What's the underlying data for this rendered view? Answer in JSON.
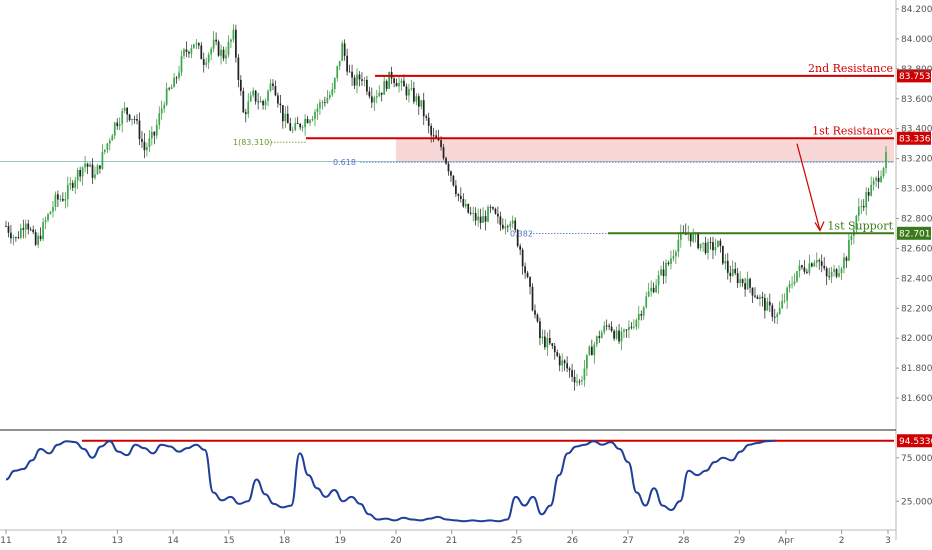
{
  "chart_data": {
    "type": "candlestick",
    "grid": false,
    "price_axis": {
      "ticks": [
        "84.200",
        "84.000",
        "83.800",
        "83.600",
        "83.400",
        "83.200",
        "83.000",
        "82.800",
        "82.600",
        "82.400",
        "82.200",
        "82.000",
        "81.800",
        "81.600"
      ],
      "range": [
        81.52,
        84.22
      ]
    },
    "date_axis": {
      "ticks": [
        "11",
        "12",
        "13",
        "14",
        "15",
        "18",
        "19",
        "20",
        "21",
        "25",
        "26",
        "27",
        "28",
        "29",
        "Apr",
        "2",
        "3"
      ]
    },
    "price_series": [
      [
        0,
        82.75
      ],
      [
        1,
        82.66
      ],
      [
        2,
        82.8
      ],
      [
        3,
        82.62
      ],
      [
        4,
        82.78
      ],
      [
        5,
        82.92
      ],
      [
        6,
        82.95
      ],
      [
        7,
        83.08
      ],
      [
        8,
        83.17
      ],
      [
        9,
        83.08
      ],
      [
        10,
        83.26
      ],
      [
        11,
        83.43
      ],
      [
        12,
        83.52
      ],
      [
        13,
        83.47
      ],
      [
        14,
        83.26
      ],
      [
        15,
        83.36
      ],
      [
        16,
        83.6
      ],
      [
        17,
        83.7
      ],
      [
        18,
        83.9
      ],
      [
        19,
        83.98
      ],
      [
        20,
        83.86
      ],
      [
        21,
        83.96
      ],
      [
        22,
        83.89
      ],
      [
        23,
        84.02
      ],
      [
        24,
        83.5
      ],
      [
        25,
        83.62
      ],
      [
        26,
        83.56
      ],
      [
        27,
        83.73
      ],
      [
        28,
        83.48
      ],
      [
        29,
        83.38
      ],
      [
        30,
        83.45
      ],
      [
        31,
        83.5
      ],
      [
        32,
        83.58
      ],
      [
        33,
        83.64
      ],
      [
        34,
        83.95
      ],
      [
        35,
        83.7
      ],
      [
        36,
        83.75
      ],
      [
        37,
        83.62
      ],
      [
        38,
        83.66
      ],
      [
        39,
        83.76
      ],
      [
        40,
        83.68
      ],
      [
        41,
        83.63
      ],
      [
        42,
        83.55
      ],
      [
        43,
        83.35
      ],
      [
        44,
        83.28
      ],
      [
        45,
        83.1
      ],
      [
        46,
        82.9
      ],
      [
        47,
        82.82
      ],
      [
        48,
        82.78
      ],
      [
        49,
        82.85
      ],
      [
        50,
        82.76
      ],
      [
        51,
        82.8
      ],
      [
        52,
        82.6
      ],
      [
        53,
        82.3
      ],
      [
        54,
        82.0
      ],
      [
        55,
        81.95
      ],
      [
        56,
        81.85
      ],
      [
        57,
        81.78
      ],
      [
        58,
        81.7
      ],
      [
        59,
        81.9
      ],
      [
        60,
        82.02
      ],
      [
        61,
        82.1
      ],
      [
        62,
        81.98
      ],
      [
        63,
        82.06
      ],
      [
        64,
        82.16
      ],
      [
        65,
        82.3
      ],
      [
        66,
        82.4
      ],
      [
        67,
        82.5
      ],
      [
        68,
        82.66
      ],
      [
        69,
        82.7
      ],
      [
        70,
        82.64
      ],
      [
        71,
        82.6
      ],
      [
        72,
        82.62
      ],
      [
        73,
        82.45
      ],
      [
        74,
        82.4
      ],
      [
        75,
        82.36
      ],
      [
        76,
        82.28
      ],
      [
        77,
        82.2
      ],
      [
        78,
        82.15
      ],
      [
        79,
        82.3
      ],
      [
        80,
        82.45
      ],
      [
        81,
        82.48
      ],
      [
        82,
        82.55
      ],
      [
        83,
        82.4
      ],
      [
        84,
        82.45
      ],
      [
        85,
        82.55
      ],
      [
        86,
        82.82
      ],
      [
        87,
        82.95
      ],
      [
        88,
        83.05
      ],
      [
        89,
        83.2
      ]
    ],
    "levels": [
      {
        "label": "2nd Resistance",
        "value": "83.753",
        "color": "#d10000",
        "from_index": 39
      },
      {
        "label": "1st Resistance",
        "value": "83.336",
        "color": "#d10000",
        "from_index": 43
      },
      {
        "label": "1st Support",
        "value": "82.701",
        "color": "#3b7a1c",
        "from_index": 70
      }
    ],
    "fibonacci": [
      {
        "label": "1(83.310)",
        "value": 83.31
      },
      {
        "label": "0.618",
        "value": 83.176
      },
      {
        "label": "0.382",
        "value": 82.7
      }
    ],
    "current_price": 83.18,
    "resistance_zone": {
      "from": 83.176,
      "to": 83.336
    },
    "arrow": {
      "from_index": 89,
      "to_index": 94,
      "from_value": 83.3,
      "to_value": 82.72
    },
    "oscillator": {
      "range": [
        0,
        100
      ],
      "ticks": [
        "75.0000",
        "25.0000"
      ],
      "level": {
        "label": "94.5336",
        "value": 94.5336
      },
      "values": [
        [
          0,
          50
        ],
        [
          1,
          60
        ],
        [
          2,
          62
        ],
        [
          3,
          72
        ],
        [
          4,
          85
        ],
        [
          5,
          80
        ],
        [
          6,
          90
        ],
        [
          7,
          94
        ],
        [
          8,
          93
        ],
        [
          9,
          85
        ],
        [
          10,
          75
        ],
        [
          11,
          88
        ],
        [
          12,
          94
        ],
        [
          13,
          82
        ],
        [
          14,
          78
        ],
        [
          15,
          90
        ],
        [
          16,
          86
        ],
        [
          17,
          80
        ],
        [
          18,
          90
        ],
        [
          19,
          88
        ],
        [
          20,
          82
        ],
        [
          21,
          86
        ],
        [
          22,
          90
        ],
        [
          23,
          84
        ],
        [
          24,
          35
        ],
        [
          25,
          26
        ],
        [
          26,
          30
        ],
        [
          27,
          22
        ],
        [
          28,
          25
        ],
        [
          29,
          50
        ],
        [
          30,
          33
        ],
        [
          31,
          22
        ],
        [
          32,
          18
        ],
        [
          33,
          20
        ],
        [
          34,
          80
        ],
        [
          35,
          55
        ],
        [
          36,
          40
        ],
        [
          37,
          30
        ],
        [
          38,
          38
        ],
        [
          39,
          25
        ],
        [
          40,
          30
        ],
        [
          41,
          22
        ],
        [
          42,
          10
        ],
        [
          43,
          4
        ],
        [
          44,
          5
        ],
        [
          45,
          3
        ],
        [
          46,
          6
        ],
        [
          47,
          4
        ],
        [
          48,
          3
        ],
        [
          49,
          5
        ],
        [
          50,
          7
        ],
        [
          51,
          4
        ],
        [
          52,
          3
        ],
        [
          53,
          2
        ],
        [
          54,
          3
        ],
        [
          55,
          2
        ],
        [
          56,
          3
        ],
        [
          57,
          2
        ],
        [
          58,
          4
        ],
        [
          59,
          30
        ],
        [
          60,
          20
        ],
        [
          61,
          30
        ],
        [
          62,
          10
        ],
        [
          63,
          20
        ],
        [
          64,
          55
        ],
        [
          65,
          80
        ],
        [
          66,
          88
        ],
        [
          67,
          90
        ],
        [
          68,
          94
        ],
        [
          69,
          90
        ],
        [
          70,
          93
        ],
        [
          71,
          85
        ],
        [
          72,
          70
        ],
        [
          73,
          35
        ],
        [
          74,
          20
        ],
        [
          75,
          40
        ],
        [
          76,
          20
        ],
        [
          77,
          15
        ],
        [
          78,
          25
        ],
        [
          79,
          60
        ],
        [
          80,
          55
        ],
        [
          81,
          60
        ],
        [
          82,
          70
        ],
        [
          83,
          75
        ],
        [
          84,
          72
        ],
        [
          85,
          82
        ],
        [
          86,
          90
        ],
        [
          87,
          92
        ],
        [
          88,
          94
        ],
        [
          89,
          94.5
        ]
      ]
    }
  }
}
